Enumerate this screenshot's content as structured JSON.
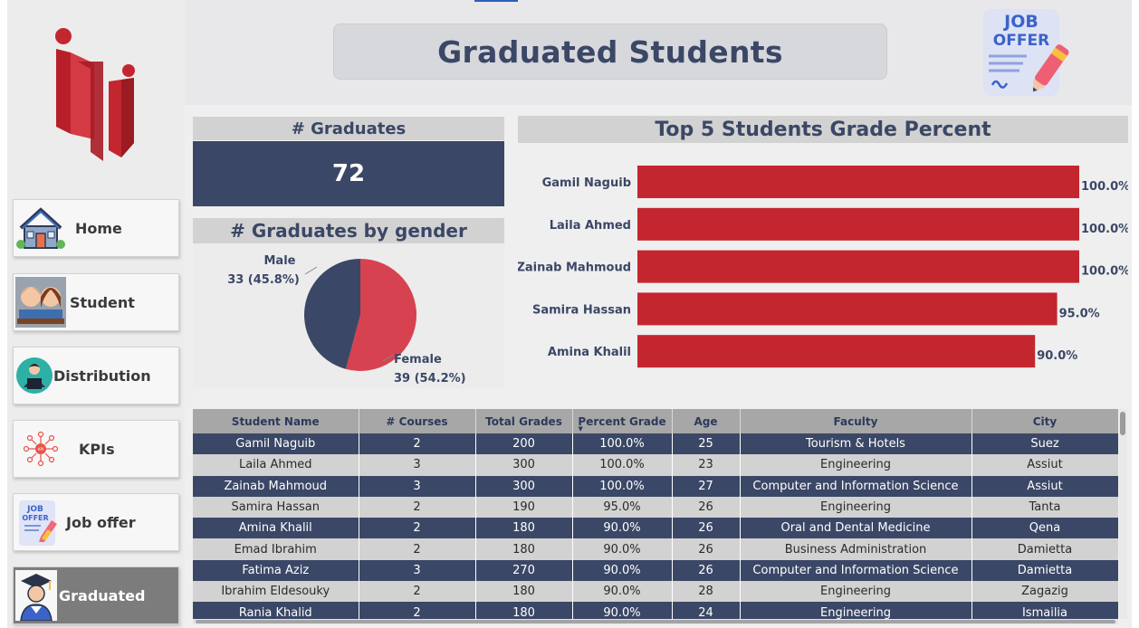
{
  "page_title": "Graduated Students",
  "colors": {
    "navy": "#3b4766",
    "red": "#c4262f",
    "pie_red": "#d6424f",
    "panel": "#d2d2d2"
  },
  "nav": [
    {
      "label": "Home",
      "icon": "house-icon"
    },
    {
      "label": "Student",
      "icon": "students-icon"
    },
    {
      "label": "Distribution",
      "icon": "teacher-icon"
    },
    {
      "label": "KPIs",
      "icon": "kpi-network-icon"
    },
    {
      "label": "Job offer",
      "icon": "job-offer-icon"
    },
    {
      "label": "Graduated",
      "icon": "graduate-icon",
      "active": true
    }
  ],
  "job_offer_image_text": "JOB OFFER",
  "kpi": {
    "title": "# Graduates",
    "value": "72"
  },
  "pie": {
    "title": "# Graduates by gender",
    "male_label": "Male",
    "male_detail": "33 (45.8%)",
    "female_label": "Female",
    "female_detail": "39 (54.2%)"
  },
  "bar": {
    "title": "Top 5 Students Grade Percent"
  },
  "chart_data": [
    {
      "type": "pie",
      "title": "# Graduates by gender",
      "categories": [
        "Male",
        "Female"
      ],
      "values": [
        33,
        39
      ],
      "percents": [
        45.8,
        54.2
      ],
      "colors": [
        "#3b4766",
        "#d6424f"
      ]
    },
    {
      "type": "bar",
      "orientation": "horizontal",
      "title": "Top 5 Students Grade Percent",
      "categories": [
        "Gamil Naguib",
        "Laila Ahmed",
        "Zainab Mahmoud",
        "Samira Hassan",
        "Amina Khalil"
      ],
      "values": [
        100.0,
        100.0,
        100.0,
        95.0,
        90.0
      ],
      "labels": [
        "100.0%",
        "100.0%",
        "100.0%",
        "95.0%",
        "90.0%"
      ],
      "xlim": [
        0,
        100
      ],
      "color": "#c4262f"
    }
  ],
  "table": {
    "columns": [
      "Student Name",
      "# Courses",
      "Total Grades",
      "Percent Grade",
      "Age",
      "Faculty",
      "City"
    ],
    "rows": [
      [
        "Gamil Naguib",
        "2",
        "200",
        "100.0%",
        "25",
        "Tourism & Hotels",
        "Suez"
      ],
      [
        "Laila Ahmed",
        "3",
        "300",
        "100.0%",
        "23",
        "Engineering",
        "Assiut"
      ],
      [
        "Zainab Mahmoud",
        "3",
        "300",
        "100.0%",
        "27",
        "Computer and Information Science",
        "Assiut"
      ],
      [
        "Samira Hassan",
        "2",
        "190",
        "95.0%",
        "26",
        "Engineering",
        "Tanta"
      ],
      [
        "Amina Khalil",
        "2",
        "180",
        "90.0%",
        "26",
        "Oral and Dental Medicine",
        "Qena"
      ],
      [
        "Emad Ibrahim",
        "2",
        "180",
        "90.0%",
        "26",
        "Business Administration",
        "Damietta"
      ],
      [
        "Fatima Aziz",
        "3",
        "270",
        "90.0%",
        "26",
        "Computer and Information Science",
        "Damietta"
      ],
      [
        "Ibrahim Eldesouky",
        "2",
        "180",
        "90.0%",
        "28",
        "Engineering",
        "Zagazig"
      ],
      [
        "Rania Khalid",
        "2",
        "180",
        "90.0%",
        "24",
        "Engineering",
        "Ismailia"
      ]
    ]
  }
}
